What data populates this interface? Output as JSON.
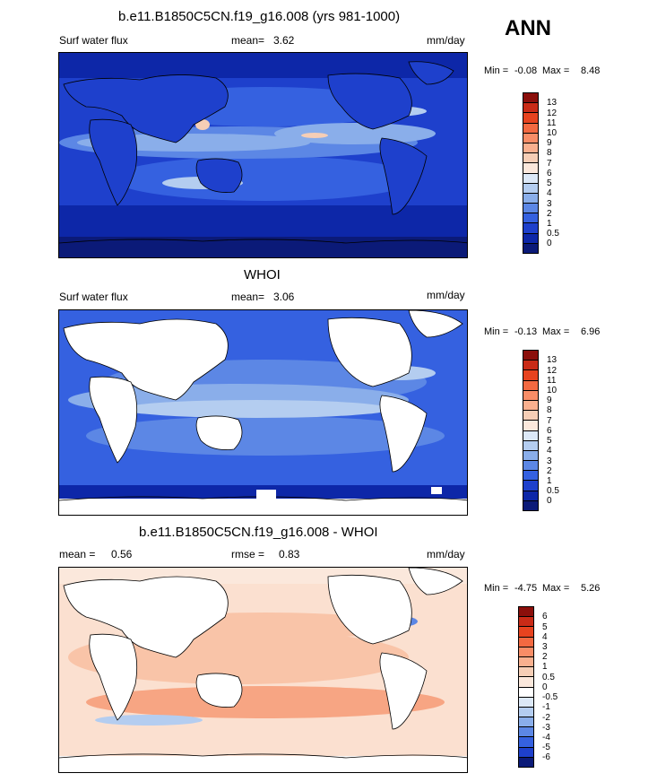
{
  "season": "ANN",
  "panels": [
    {
      "title": "b.e11.B1850C5CN.f19_g16.008 (yrs 981-1000)",
      "left_label": "Surf water flux",
      "mean_label": "mean=",
      "mean_value": "3.62",
      "units": "mm/day",
      "min_label": "Min =",
      "min_value": "-0.08",
      "max_label": "Max =",
      "max_value": "8.48",
      "colorbar_labels": [
        "13",
        "12",
        "11",
        "10",
        "9",
        "8",
        "7",
        "6",
        "5",
        "4",
        "3",
        "2",
        "1",
        "0.5",
        "0"
      ],
      "colorbar_colors": [
        "#8b0f0b",
        "#c92b17",
        "#e7431f",
        "#f36941",
        "#f88d67",
        "#f9b08f",
        "#f6ceb6",
        "#fbe8dc",
        "#dce8f7",
        "#b4cdf0",
        "#8aaeea",
        "#5c87e5",
        "#3561e0",
        "#1e40cc",
        "#0d27a8",
        "#0b1a78"
      ]
    },
    {
      "title": "WHOI",
      "left_label": "Surf water flux",
      "mean_label": "mean=",
      "mean_value": "3.06",
      "units": "mm/day",
      "min_label": "Min =",
      "min_value": "-0.13",
      "max_label": "Max =",
      "max_value": "6.96",
      "colorbar_labels": [
        "13",
        "12",
        "11",
        "10",
        "9",
        "8",
        "7",
        "6",
        "5",
        "4",
        "3",
        "2",
        "1",
        "0.5",
        "0"
      ],
      "colorbar_colors": [
        "#8b0f0b",
        "#c92b17",
        "#e7431f",
        "#f36941",
        "#f88d67",
        "#f9b08f",
        "#f6ceb6",
        "#fbe8dc",
        "#dce8f7",
        "#b4cdf0",
        "#8aaeea",
        "#5c87e5",
        "#3561e0",
        "#1e40cc",
        "#0d27a8",
        "#0b1a78"
      ]
    },
    {
      "title": "b.e11.B1850C5CN.f19_g16.008 - WHOI",
      "left_label": "mean =",
      "left_value": "0.56",
      "mean_label": "rmse =",
      "mean_value": "0.83",
      "units": "mm/day",
      "min_label": "Min =",
      "min_value": "-4.75",
      "max_label": "Max =",
      "max_value": "5.26",
      "colorbar_labels": [
        "6",
        "5",
        "4",
        "3",
        "2",
        "1",
        "0.5",
        "0",
        "-0.5",
        "-1",
        "-2",
        "-3",
        "-4",
        "-5",
        "-6"
      ],
      "colorbar_colors": [
        "#8b0f0b",
        "#c92b17",
        "#e7431f",
        "#f36941",
        "#f88d67",
        "#f9b08f",
        "#f6ceb6",
        "#fbe8dc",
        "#ffffff",
        "#dce8f7",
        "#b4cdf0",
        "#8aaeea",
        "#5c87e5",
        "#3561e0",
        "#1e40cc",
        "#0b1a78"
      ]
    }
  ],
  "map_colors": {
    "ocean_deep": "#0d27a8",
    "ocean_mid": "#3561e0",
    "ocean_light": "#8aaeea",
    "ocean_pale": "#b4cdf0",
    "warm": "#f6ceb6",
    "land": "#ffffff",
    "diff_base": "#f9c4a8",
    "diff_light": "#fbe0d0",
    "diff_warm": "#f7a583"
  }
}
